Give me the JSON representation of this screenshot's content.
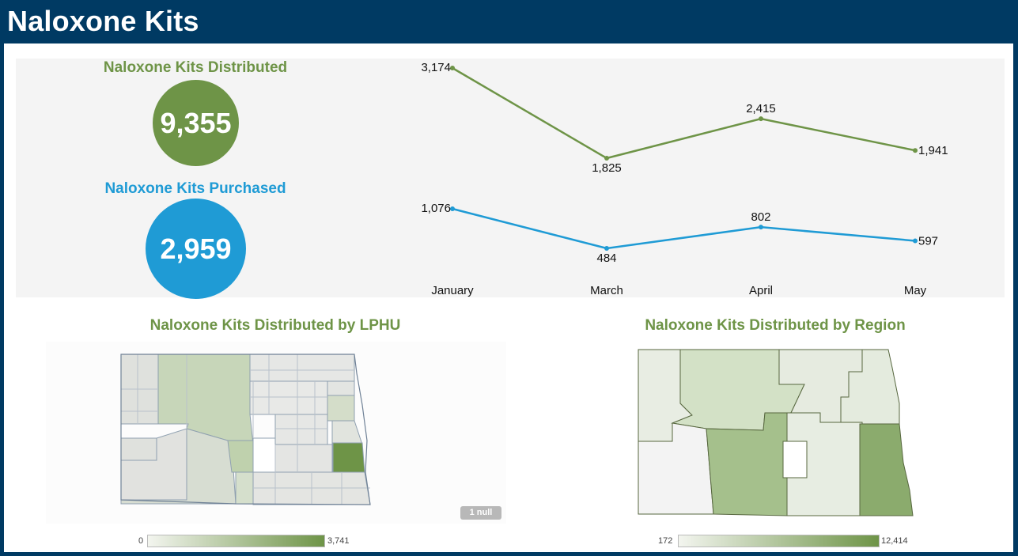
{
  "title": "Naloxone Kits",
  "kpis": {
    "distributed": {
      "label": "Naloxone Kits Distributed",
      "value": "9,355",
      "color": "#6e9447"
    },
    "purchased": {
      "label": "Naloxone Kits Purchased",
      "value": "2,959",
      "color": "#1f9bd5"
    }
  },
  "chart_data": {
    "type": "line",
    "categories": [
      "January",
      "March",
      "April",
      "May"
    ],
    "series": [
      {
        "key": "distributed",
        "values": [
          3174,
          1825,
          2415,
          1941
        ],
        "labels": [
          "3,174",
          "1,825",
          "2,415",
          "1,941"
        ],
        "color": "#6e9447"
      },
      {
        "key": "purchased",
        "values": [
          1076,
          484,
          802,
          597
        ],
        "labels": [
          "1,076",
          "484",
          "802",
          "597"
        ],
        "color": "#1f9bd5"
      }
    ]
  },
  "maps": {
    "lphu": {
      "title": "Naloxone Kits Distributed by LPHU",
      "legend_min": "0",
      "legend_max": "3,741",
      "null_label": "1 null"
    },
    "region": {
      "title": "Naloxone Kits Distributed by Region",
      "legend_min": "172",
      "legend_max": "12,414"
    }
  }
}
